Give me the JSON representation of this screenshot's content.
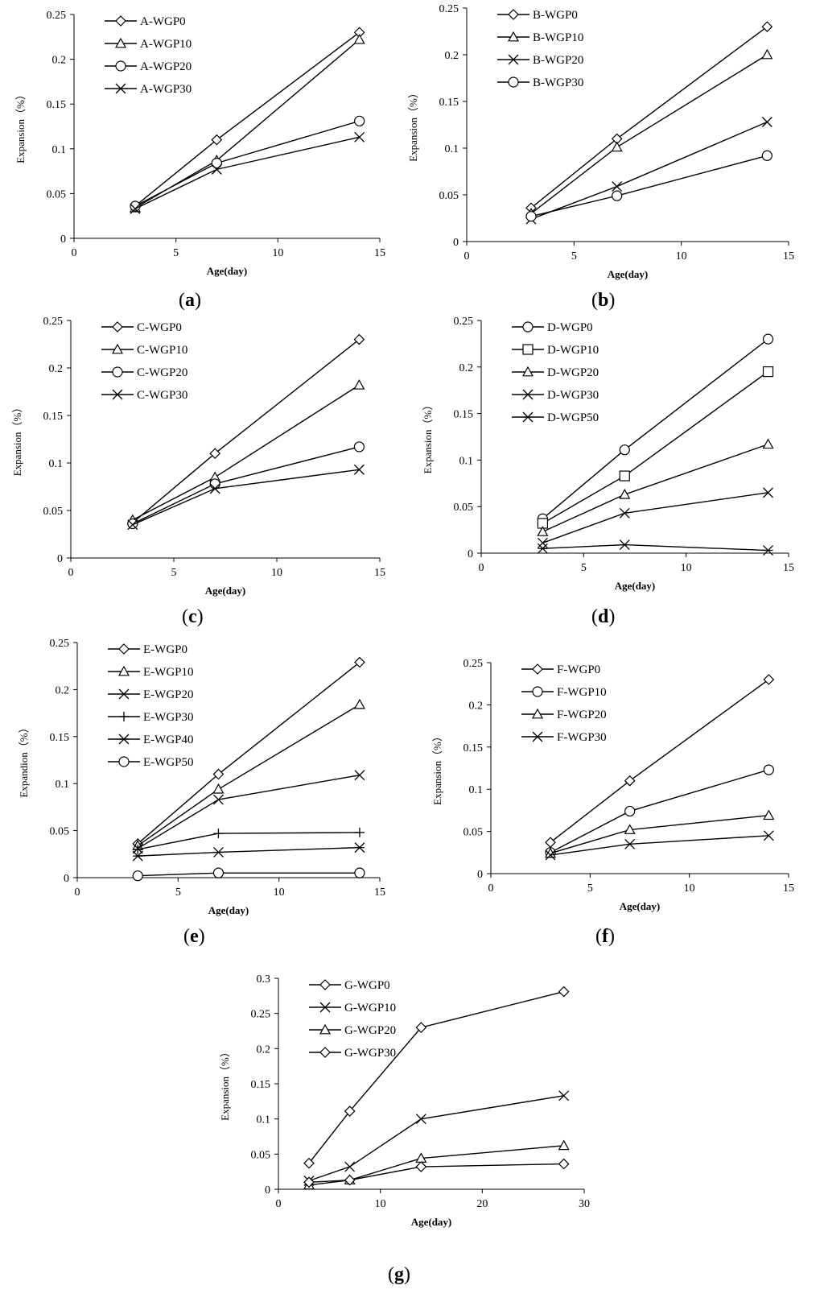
{
  "chart_data": [
    {
      "panel": "a",
      "type": "line",
      "xlabel": "Age(day)",
      "ylabel": "Expansion（%）",
      "xlim": [
        0,
        15
      ],
      "ylim": [
        0,
        0.25
      ],
      "xticks": [
        "0",
        "5",
        "10",
        "15"
      ],
      "yticks": [
        "0",
        "0.05",
        "0.1",
        "0.15",
        "0.2",
        "0.25"
      ],
      "legend_position": "top-left",
      "series": [
        {
          "name": "A-WGP0",
          "marker": "diamond",
          "x": [
            3,
            7,
            14
          ],
          "y": [
            0.036,
            0.11,
            0.23
          ]
        },
        {
          "name": "A-WGP10",
          "marker": "triangle",
          "x": [
            3,
            7,
            14
          ],
          "y": [
            0.034,
            0.087,
            0.222
          ]
        },
        {
          "name": "A-WGP20",
          "marker": "circle",
          "x": [
            3,
            7,
            14
          ],
          "y": [
            0.036,
            0.084,
            0.131
          ]
        },
        {
          "name": "A-WGP30",
          "marker": "x",
          "x": [
            3,
            7,
            14
          ],
          "y": [
            0.033,
            0.077,
            0.113
          ]
        }
      ]
    },
    {
      "panel": "b",
      "type": "line",
      "xlabel": "Age(day)",
      "ylabel": "Expansion（%）",
      "xlim": [
        0,
        15
      ],
      "ylim": [
        0,
        0.25
      ],
      "xticks": [
        "0",
        "5",
        "10",
        "15"
      ],
      "yticks": [
        "0",
        "0.05",
        "0.1",
        "0.15",
        "0.2",
        "0.25"
      ],
      "legend_position": "top-left",
      "series": [
        {
          "name": "B-WGP0",
          "marker": "diamond",
          "x": [
            3,
            7,
            14
          ],
          "y": [
            0.036,
            0.11,
            0.23
          ]
        },
        {
          "name": "B-WGP10",
          "marker": "triangle",
          "x": [
            3,
            7,
            14
          ],
          "y": [
            0.03,
            0.101,
            0.2
          ]
        },
        {
          "name": "B-WGP20",
          "marker": "x",
          "x": [
            3,
            7,
            14
          ],
          "y": [
            0.024,
            0.059,
            0.128
          ]
        },
        {
          "name": "B-WGP30",
          "marker": "circle",
          "x": [
            3,
            7,
            14
          ],
          "y": [
            0.027,
            0.049,
            0.092
          ]
        }
      ]
    },
    {
      "panel": "c",
      "type": "line",
      "xlabel": "Age(day)",
      "ylabel": "Expansion（%）",
      "xlim": [
        0,
        15
      ],
      "ylim": [
        0,
        0.25
      ],
      "xticks": [
        "0",
        "5",
        "10",
        "15"
      ],
      "yticks": [
        "0",
        "0.05",
        "0.1",
        "0.15",
        "0.2",
        "0.25"
      ],
      "legend_position": "top-left",
      "series": [
        {
          "name": "C-WGP0",
          "marker": "diamond",
          "x": [
            3,
            7,
            14
          ],
          "y": [
            0.037,
            0.11,
            0.23
          ]
        },
        {
          "name": "C-WGP10",
          "marker": "triangle",
          "x": [
            3,
            7,
            14
          ],
          "y": [
            0.04,
            0.085,
            0.182
          ]
        },
        {
          "name": "C-WGP20",
          "marker": "circle",
          "x": [
            3,
            7,
            14
          ],
          "y": [
            0.036,
            0.078,
            0.117
          ]
        },
        {
          "name": "C-WGP30",
          "marker": "x",
          "x": [
            3,
            7,
            14
          ],
          "y": [
            0.035,
            0.073,
            0.093
          ]
        }
      ]
    },
    {
      "panel": "d",
      "type": "line",
      "xlabel": "Age(day)",
      "ylabel": "Expansion（%）",
      "xlim": [
        0,
        15
      ],
      "ylim": [
        0,
        0.25
      ],
      "xticks": [
        "0",
        "5",
        "10",
        "15"
      ],
      "yticks": [
        "0",
        "0.05",
        "0.1",
        "0.15",
        "0.2",
        "0.25"
      ],
      "legend_position": "top-left",
      "series": [
        {
          "name": "D-WGP0",
          "marker": "circle",
          "x": [
            3,
            7,
            14
          ],
          "y": [
            0.037,
            0.111,
            0.23
          ]
        },
        {
          "name": "D-WGP10",
          "marker": "square",
          "x": [
            3,
            7,
            14
          ],
          "y": [
            0.032,
            0.083,
            0.195
          ]
        },
        {
          "name": "D-WGP20",
          "marker": "triangle",
          "x": [
            3,
            7,
            14
          ],
          "y": [
            0.023,
            0.063,
            0.117
          ]
        },
        {
          "name": "D-WGP30",
          "marker": "x",
          "x": [
            3,
            7,
            14
          ],
          "y": [
            0.011,
            0.043,
            0.065
          ]
        },
        {
          "name": "D-WGP50",
          "marker": "star",
          "x": [
            3,
            7,
            14
          ],
          "y": [
            0.005,
            0.009,
            0.003
          ]
        }
      ]
    },
    {
      "panel": "e",
      "type": "line",
      "xlabel": "Age(day)",
      "ylabel": "Expandion（%）",
      "xlim": [
        0,
        15
      ],
      "ylim": [
        0,
        0.25
      ],
      "xticks": [
        "0",
        "5",
        "10",
        "15"
      ],
      "yticks": [
        "0",
        "0.05",
        "0.1",
        "0.15",
        "0.2",
        "0.25"
      ],
      "legend_position": "top-left",
      "series": [
        {
          "name": "E-WGP0",
          "marker": "diamond",
          "x": [
            3,
            7,
            14
          ],
          "y": [
            0.036,
            0.11,
            0.229
          ]
        },
        {
          "name": "E-WGP10",
          "marker": "triangle",
          "x": [
            3,
            7,
            14
          ],
          "y": [
            0.034,
            0.094,
            0.184
          ]
        },
        {
          "name": "E-WGP20",
          "marker": "x",
          "x": [
            3,
            7,
            14
          ],
          "y": [
            0.031,
            0.083,
            0.109
          ]
        },
        {
          "name": "E-WGP30",
          "marker": "plus",
          "x": [
            3,
            7,
            14
          ],
          "y": [
            0.03,
            0.047,
            0.048
          ]
        },
        {
          "name": "E-WGP40",
          "marker": "star",
          "x": [
            3,
            7,
            14
          ],
          "y": [
            0.023,
            0.027,
            0.032
          ]
        },
        {
          "name": "E-WGP50",
          "marker": "circle",
          "x": [
            3,
            7,
            14
          ],
          "y": [
            0.002,
            0.005,
            0.005
          ]
        }
      ]
    },
    {
      "panel": "f",
      "type": "line",
      "xlabel": "Age(day)",
      "ylabel": "Expansion（%）",
      "xlim": [
        0,
        15
      ],
      "ylim": [
        0,
        0.25
      ],
      "xticks": [
        "0",
        "5",
        "10",
        "15"
      ],
      "yticks": [
        "0",
        "0.05",
        "0.1",
        "0.15",
        "0.2",
        "0.25"
      ],
      "legend_position": "top-left",
      "series": [
        {
          "name": "F-WGP0",
          "marker": "diamond",
          "x": [
            3,
            7,
            14
          ],
          "y": [
            0.037,
            0.11,
            0.23
          ]
        },
        {
          "name": "F-WGP10",
          "marker": "circle",
          "x": [
            3,
            7,
            14
          ],
          "y": [
            0.025,
            0.074,
            0.123
          ]
        },
        {
          "name": "F-WGP20",
          "marker": "triangle",
          "x": [
            3,
            7,
            14
          ],
          "y": [
            0.024,
            0.052,
            0.069
          ]
        },
        {
          "name": "F-WGP30",
          "marker": "x",
          "x": [
            3,
            7,
            14
          ],
          "y": [
            0.022,
            0.035,
            0.045
          ]
        }
      ]
    },
    {
      "panel": "g",
      "type": "line",
      "xlabel": "Age(day)",
      "ylabel": "Expansion（%）",
      "xlim": [
        0,
        30
      ],
      "ylim": [
        0,
        0.3
      ],
      "xticks": [
        "0",
        "10",
        "20",
        "30"
      ],
      "yticks": [
        "0",
        "0.05",
        "0.1",
        "0.15",
        "0.2",
        "0.25",
        "0.3"
      ],
      "legend_position": "top-left",
      "series": [
        {
          "name": "G-WGP0",
          "marker": "diamond",
          "x": [
            3,
            7,
            14,
            28
          ],
          "y": [
            0.037,
            0.111,
            0.23,
            0.281
          ]
        },
        {
          "name": "G-WGP10",
          "marker": "x",
          "x": [
            3,
            7,
            14,
            28
          ],
          "y": [
            0.012,
            0.032,
            0.1,
            0.133
          ]
        },
        {
          "name": "G-WGP20",
          "marker": "triangle",
          "x": [
            3,
            7,
            14,
            28
          ],
          "y": [
            0.006,
            0.013,
            0.044,
            0.062
          ]
        },
        {
          "name": "G-WGP30",
          "marker": "diamond",
          "x": [
            3,
            7,
            14,
            28
          ],
          "y": [
            0.01,
            0.013,
            0.032,
            0.036
          ]
        }
      ]
    }
  ],
  "captions": [
    "a",
    "b",
    "c",
    "d",
    "e",
    "f",
    "g"
  ]
}
